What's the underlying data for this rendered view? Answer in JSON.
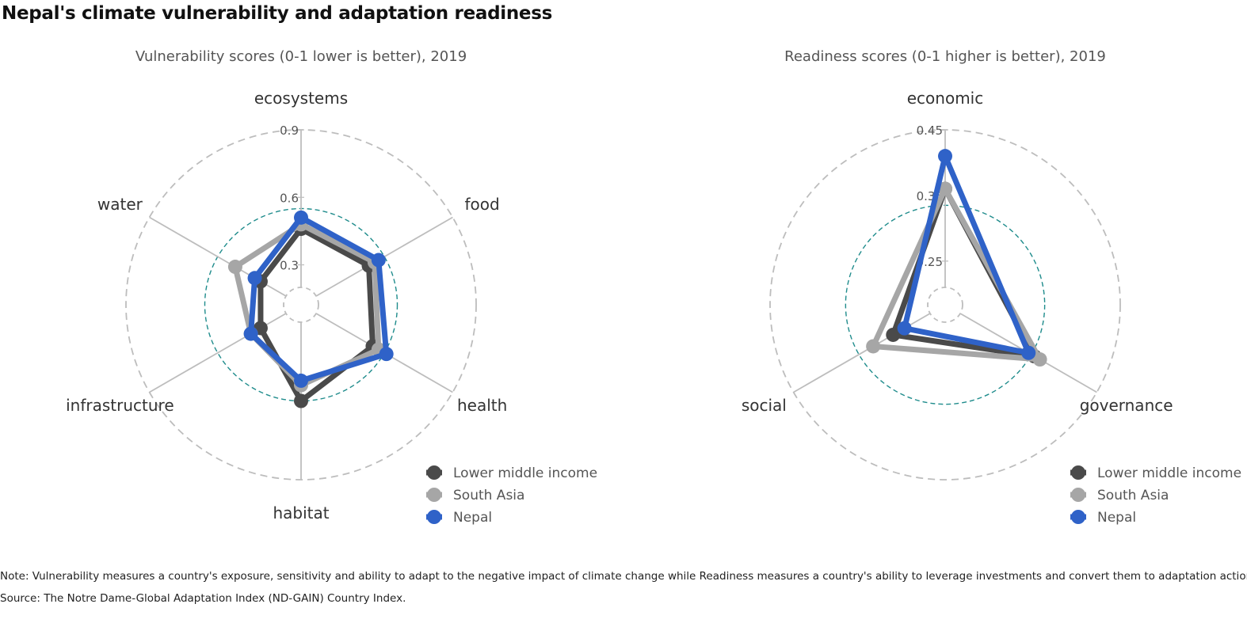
{
  "title": "Nepal's climate vulnerability and adaptation readiness",
  "note": "Note: Vulnerability measures a country's exposure, sensitivity and ability to adapt to the negative impact of climate change while Readiness measures a country's ability to leverage investments and convert them to adaptation actions.",
  "source": "Source: The Notre Dame-Global Adaptation Index (ND-GAIN) Country Index.",
  "colors": {
    "lower_middle_income": "#4a4a4a",
    "south_asia": "#a6a6a6",
    "nepal": "#2f62c8",
    "grid": "#bdbdbd",
    "reference_circle": "#1f8c8c"
  },
  "chart_data": [
    {
      "type": "radar",
      "title": "Vulnerability scores (0-1 lower is better), 2019",
      "categories": [
        "ecosystems",
        "food",
        "health",
        "habitat",
        "infrastructure",
        "water"
      ],
      "rmin": 0.2,
      "rmax": 0.9,
      "ticks": [
        0.3,
        0.6,
        0.9
      ],
      "tick_labels": [
        "0.3",
        "0.6",
        "0.9"
      ],
      "reference_circle": 0.55,
      "series": [
        {
          "name": "Lower middle income",
          "color_key": "lower_middle_income",
          "values": [
            0.46,
            0.47,
            0.49,
            0.55,
            0.33,
            0.33
          ]
        },
        {
          "name": "South Asia",
          "color_key": "south_asia",
          "values": [
            0.48,
            0.5,
            0.52,
            0.48,
            0.38,
            0.46
          ]
        },
        {
          "name": "Nepal",
          "color_key": "nepal",
          "values": [
            0.51,
            0.52,
            0.56,
            0.46,
            0.38,
            0.36
          ]
        }
      ],
      "legend": [
        "Lower middle income",
        "South Asia",
        "Nepal"
      ]
    },
    {
      "type": "radar",
      "title": "Readiness scores (0-1 higher is better), 2019",
      "categories": [
        "economic",
        "governance",
        "social"
      ],
      "rmin": 0.21,
      "rmax": 0.45,
      "ticks": [
        0.25,
        0.35,
        0.45
      ],
      "tick_labels": [
        "0.25",
        "0.35",
        "0.45"
      ],
      "reference_circle": 0.335,
      "series": [
        {
          "name": "Lower middle income",
          "color_key": "lower_middle_income",
          "values": [
            0.36,
            0.34,
            0.275
          ]
        },
        {
          "name": "South Asia",
          "color_key": "south_asia",
          "values": [
            0.36,
            0.35,
            0.31
          ]
        },
        {
          "name": "Nepal",
          "color_key": "nepal",
          "values": [
            0.41,
            0.33,
            0.255
          ]
        }
      ],
      "legend": [
        "Lower middle income",
        "South Asia",
        "Nepal"
      ]
    }
  ]
}
